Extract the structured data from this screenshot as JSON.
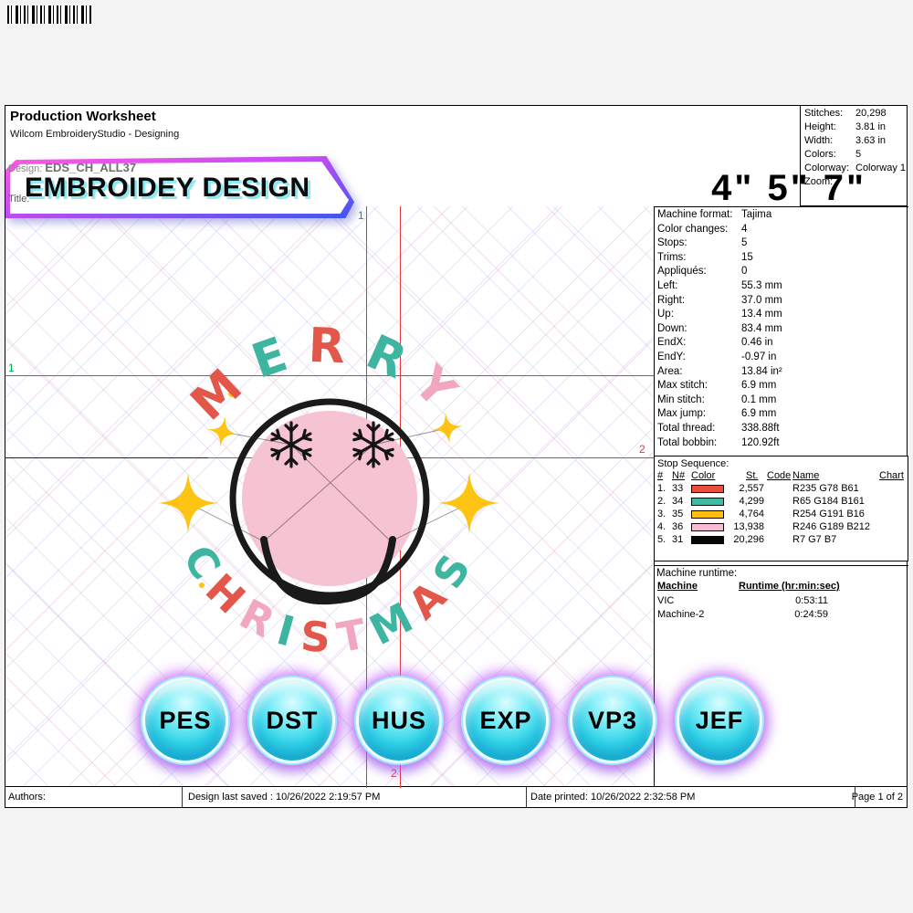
{
  "header": {
    "title": "Production Worksheet",
    "subtitle": "Wilcom EmbroideryStudio - Designing",
    "design_label": "Design:",
    "design_value": "EDS_CH_ALL37",
    "title_label": "Title:",
    "banner_text": "EMBROIDEY DESIGN",
    "hoop_sizes": "4\" 5\" 7\""
  },
  "stats": {
    "rows": [
      {
        "label": "Stitches:",
        "value": "20,298"
      },
      {
        "label": "Height:",
        "value": "3.81 in"
      },
      {
        "label": "Width:",
        "value": "3.63 in"
      },
      {
        "label": "Colors:",
        "value": "5"
      },
      {
        "label": "Colorway:",
        "value": "Colorway 1"
      },
      {
        "label": "Zoom:",
        "value": ""
      }
    ]
  },
  "machine_info": {
    "rows": [
      {
        "label": "Machine format:",
        "value": "Tajima"
      },
      {
        "label": "Color changes:",
        "value": "4"
      },
      {
        "label": "Stops:",
        "value": "5"
      },
      {
        "label": "Trims:",
        "value": "15"
      },
      {
        "label": "Appliqués:",
        "value": "0"
      },
      {
        "label": "Left:",
        "value": "55.3 mm"
      },
      {
        "label": "Right:",
        "value": "37.0 mm"
      },
      {
        "label": "Up:",
        "value": "13.4 mm"
      },
      {
        "label": "Down:",
        "value": "83.4 mm"
      },
      {
        "label": "EndX:",
        "value": "0.46 in"
      },
      {
        "label": "EndY:",
        "value": "-0.97 in"
      },
      {
        "label": "Area:",
        "value": "13.84 in²"
      },
      {
        "label": "Max stitch:",
        "value": "6.9 mm"
      },
      {
        "label": "Min stitch:",
        "value": "0.1 mm"
      },
      {
        "label": "Max jump:",
        "value": "6.9 mm"
      },
      {
        "label": "Total thread:",
        "value": "338.88ft"
      },
      {
        "label": "Total bobbin:",
        "value": "120.92ft"
      }
    ]
  },
  "stop_sequence": {
    "title": "Stop Sequence:",
    "headers": {
      "idx": "#",
      "n": "N#",
      "color": "Color",
      "st": "St.",
      "code": "Code",
      "name": "Name",
      "chart": "Chart"
    },
    "rows": [
      {
        "idx": "1.",
        "n": "33",
        "swatch": "#EB4E3D",
        "st": "2,557",
        "name": "R235 G78 B61"
      },
      {
        "idx": "2.",
        "n": "34",
        "swatch": "#41B8A1",
        "st": "4,299",
        "name": "R65 G184 B161"
      },
      {
        "idx": "3.",
        "n": "35",
        "swatch": "#FEBF10",
        "st": "4,764",
        "name": "R254 G191 B16"
      },
      {
        "idx": "4.",
        "n": "36",
        "swatch": "#F6BDD4",
        "st": "13,938",
        "name": "R246 G189 B212"
      },
      {
        "idx": "5.",
        "n": "31",
        "swatch": "#070707",
        "st": "20,296",
        "name": "R7 G7 B7"
      }
    ]
  },
  "runtime": {
    "title": "Machine runtime:",
    "headers": {
      "machine": "Machine",
      "runtime": "Runtime (hr:min:sec)"
    },
    "rows": [
      {
        "machine": "VIC",
        "runtime": "0:53:11"
      },
      {
        "machine": "Machine-2",
        "runtime": "0:24:59"
      }
    ]
  },
  "guides": {
    "green_v": "1",
    "green_h": "1",
    "red_h": "2",
    "red_v": "2"
  },
  "design": {
    "face_color": "#F6C3D2",
    "outline_color": "#1A1A1A",
    "eye_color": "#141414",
    "star_color": "#FDC414",
    "top_letters": [
      {
        "ch": "M",
        "color": "#E2574A"
      },
      {
        "ch": "E",
        "color": "#3EB5A0"
      },
      {
        "ch": "R",
        "color": "#E2574A"
      },
      {
        "ch": "R",
        "color": "#3EB5A0"
      },
      {
        "ch": "Y",
        "color": "#F1A7C0"
      }
    ],
    "bottom_letters": [
      {
        "ch": "C",
        "color": "#3EB5A0"
      },
      {
        "ch": "H",
        "color": "#E2574A"
      },
      {
        "ch": "R",
        "color": "#F1A7C0"
      },
      {
        "ch": "I",
        "color": "#3EB5A0"
      },
      {
        "ch": "S",
        "color": "#E2574A"
      },
      {
        "ch": "T",
        "color": "#F1A7C0"
      },
      {
        "ch": "M",
        "color": "#3EB5A0"
      },
      {
        "ch": "A",
        "color": "#E2574A"
      },
      {
        "ch": "S",
        "color": "#3EB5A0"
      }
    ]
  },
  "format_buttons": [
    "PES",
    "DST",
    "HUS",
    "EXP",
    "VP3",
    "JEF"
  ],
  "footer": {
    "authors": "Authors:",
    "last_saved": "Design last saved : 10/26/2022 2:19:57 PM",
    "date_printed": "Date printed: 10/26/2022 2:32:58 PM",
    "page": "Page 1 of 2"
  }
}
